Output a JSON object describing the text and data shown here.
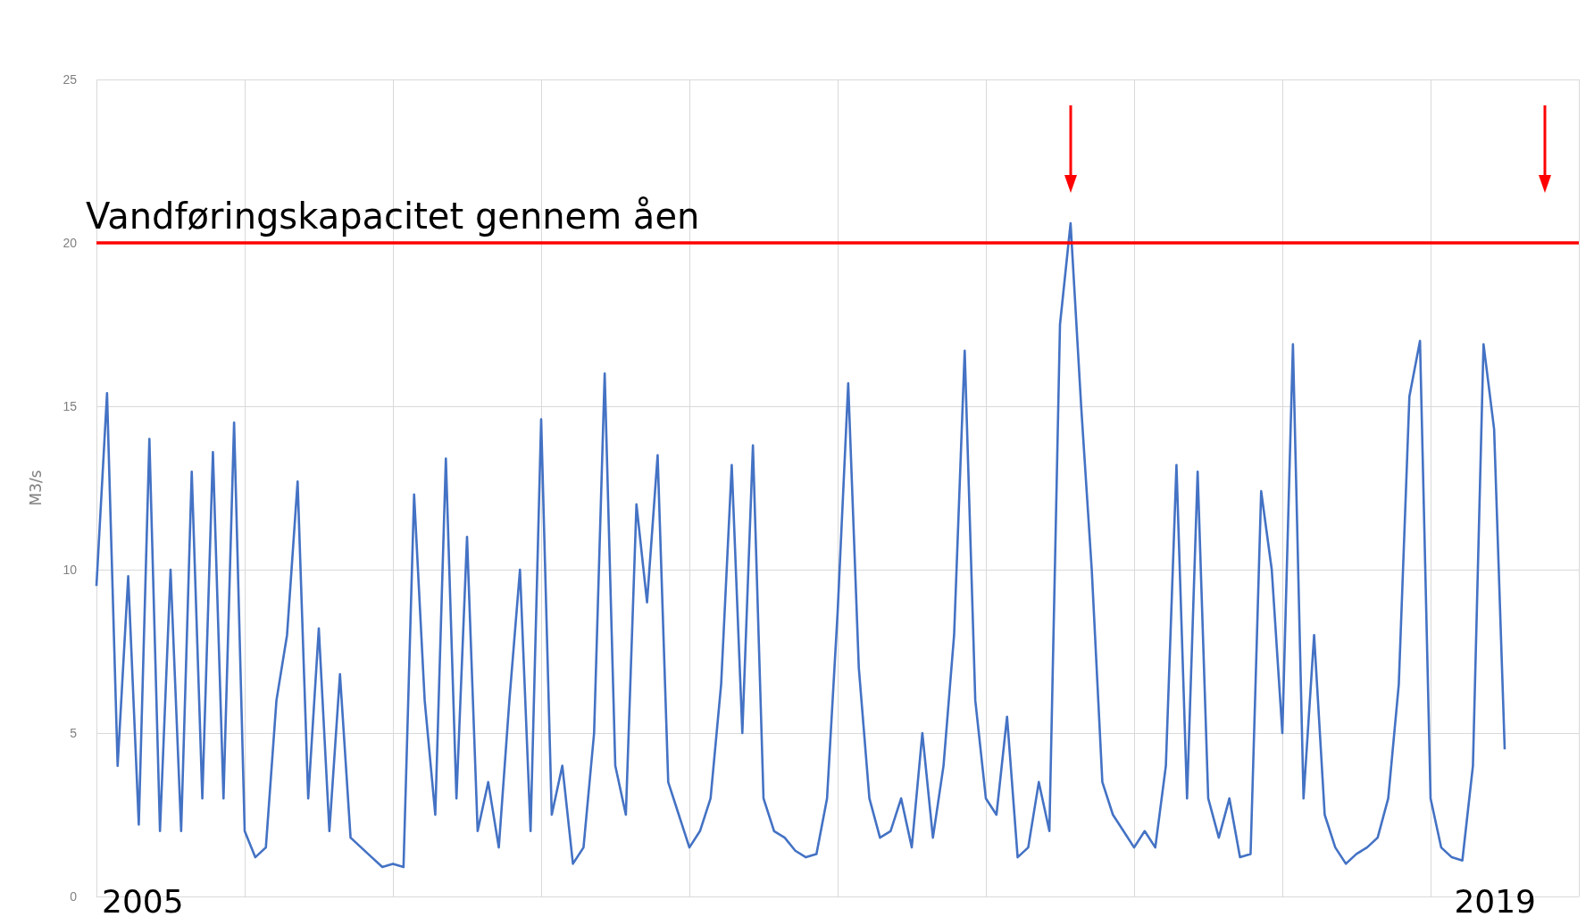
{
  "chart_data": {
    "type": "line",
    "ylabel": "M3/s",
    "categories": [
      null,
      null,
      null,
      null,
      null,
      null,
      null,
      null,
      null,
      null,
      null,
      null,
      null,
      null,
      null,
      null,
      null,
      null,
      null,
      null,
      null,
      null,
      null,
      null,
      null,
      null,
      null,
      null,
      null,
      null,
      null,
      null,
      null,
      null,
      null,
      null,
      null,
      null,
      null,
      null,
      null,
      null,
      null,
      null,
      null,
      null,
      null,
      null,
      null,
      null,
      null,
      null,
      null,
      null,
      null,
      null,
      null,
      null,
      null,
      null,
      null,
      null,
      null,
      null,
      null,
      null,
      null,
      null,
      null,
      null,
      null,
      null,
      null,
      null,
      null,
      null,
      null,
      null,
      null,
      null,
      null,
      null,
      null,
      null,
      null,
      null,
      null,
      null,
      null,
      null,
      null,
      null,
      null,
      null,
      null,
      null,
      null,
      null,
      null,
      null,
      null,
      null,
      null,
      null,
      null,
      null,
      null,
      null,
      null,
      null,
      null,
      null,
      null,
      null,
      null,
      null,
      null,
      null,
      null,
      null,
      null,
      null,
      null,
      null,
      null,
      null,
      null,
      null,
      null,
      null,
      null,
      null,
      null,
      null,
      null,
      null,
      null,
      null,
      null,
      null,
      null
    ],
    "series": [
      {
        "color": "#4472c4",
        "values": [
          9.5,
          15.4,
          4,
          9.8,
          2.2,
          14,
          2,
          10,
          2,
          13,
          3,
          13.6,
          3,
          14.5,
          2,
          1.2,
          1.5,
          6,
          8,
          12.7,
          3,
          8.2,
          2,
          6.8,
          1.8,
          1.5,
          1.2,
          0.9,
          1,
          0.9,
          12.3,
          6,
          2.5,
          13.4,
          3,
          11,
          2,
          3.5,
          1.5,
          6,
          10,
          2,
          14.6,
          2.5,
          4,
          1,
          1.5,
          5,
          16,
          4,
          2.5,
          12,
          9,
          13.5,
          3.5,
          2.5,
          1.5,
          2,
          3,
          6.5,
          13.2,
          5,
          13.8,
          3,
          2,
          1.8,
          1.4,
          1.2,
          1.3,
          3,
          8.7,
          15.7,
          7,
          3,
          1.8,
          2,
          3,
          1.5,
          5,
          1.8,
          4,
          8,
          16.7,
          6,
          3,
          2.5,
          5.5,
          1.2,
          1.5,
          3.5,
          2,
          17.5,
          20.6,
          15,
          10,
          3.5,
          2.5,
          2,
          1.5,
          2,
          1.5,
          4,
          13.2,
          3,
          13,
          3,
          1.8,
          3,
          1.2,
          1.3,
          12.4,
          10,
          5,
          16.9,
          3,
          8,
          2.5,
          1.5,
          1,
          1.3,
          1.5,
          1.8,
          3,
          6.5,
          15.3,
          17,
          3,
          1.5,
          1.2,
          1.1,
          4,
          16.9,
          14.3,
          4.5,
          null,
          null,
          null,
          null,
          null,
          null,
          null
        ]
      }
    ],
    "ylim": [
      0,
      25
    ],
    "yticks": [
      0,
      5,
      10,
      15,
      20,
      25
    ],
    "grid": true,
    "marker": "none",
    "ref_lines": [
      {
        "axis": "y",
        "value": 20,
        "label": "Vandføringskapacitet gennem åen",
        "color": "#ff0000"
      }
    ],
    "annotations": [
      "2005",
      "2019"
    ]
  }
}
